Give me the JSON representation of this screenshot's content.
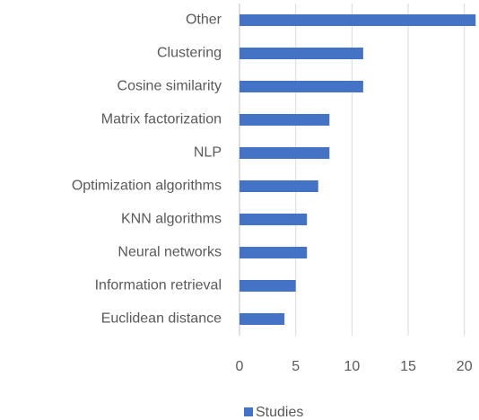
{
  "chart_data": {
    "type": "bar",
    "orientation": "horizontal",
    "categories": [
      "Other",
      "Clustering",
      "Cosine similarity",
      "Matrix factorization",
      "NLP",
      "Optimization algorithms",
      "KNN algorithms",
      "Neural networks",
      "Information retrieval",
      "Euclidean distance"
    ],
    "series": [
      {
        "name": "Studies",
        "color": "#4472c4",
        "values": [
          21,
          11,
          11,
          8,
          8,
          7,
          6,
          6,
          5,
          4
        ]
      }
    ],
    "xlim": [
      0,
      21.3
    ],
    "xticks": [
      0,
      5,
      10,
      15,
      20
    ],
    "grid": true,
    "legend": "bottom"
  }
}
